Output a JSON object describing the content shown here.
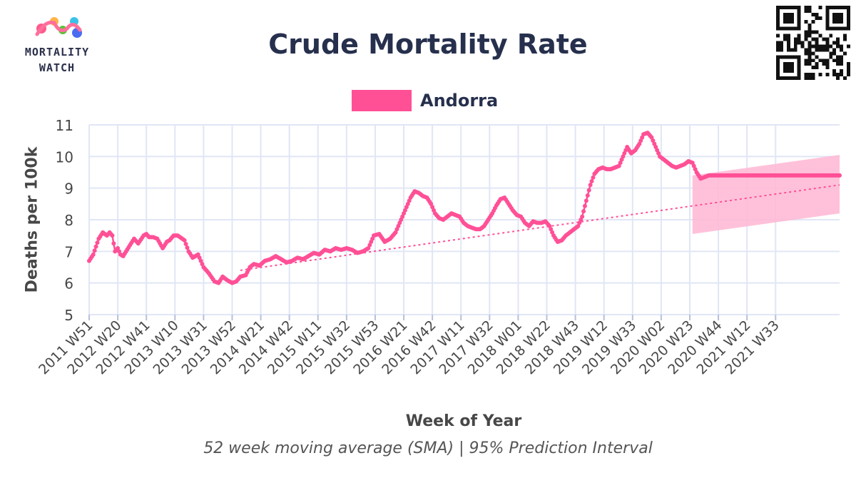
{
  "logo": {
    "line1": "MORTALITY",
    "line2": "WATCH"
  },
  "colors": {
    "series": "#ff5096",
    "band": "#ffb6d4",
    "trend": "#ff5096",
    "grid": "#e1e6f5",
    "text": "#26304d"
  },
  "chart_data": {
    "type": "line",
    "title": "Crude Mortality Rate",
    "subtitle": "52 week moving average (SMA) | 95% Prediction Interval",
    "xlabel": "Week of Year",
    "ylabel": "Deaths per 100k",
    "ylim": [
      5,
      11
    ],
    "yticks": [
      5,
      6,
      7,
      8,
      9,
      10,
      11
    ],
    "grid": true,
    "legend": {
      "position": "top-center",
      "entries": [
        "Andorra"
      ]
    },
    "x_ticks": [
      "2011 W51",
      "2012 W20",
      "2012 W41",
      "2013 W10",
      "2013 W31",
      "2013 W52",
      "2014 W21",
      "2014 W42",
      "2015 W11",
      "2015 W32",
      "2015 W53",
      "2016 W21",
      "2016 W42",
      "2017 W11",
      "2017 W32",
      "2018 W01",
      "2018 W22",
      "2018 W43",
      "2019 W12",
      "2019 W33",
      "2020 W02",
      "2020 W23",
      "2020 W44",
      "2021 W12",
      "2021 W33"
    ],
    "x_start": "2011 W51",
    "x_end": "2021 W45",
    "series": [
      {
        "name": "Andorra",
        "knots_weeks_since_start": [
          0,
          3,
          7,
          10,
          13,
          15,
          17,
          19,
          21,
          23,
          25,
          30,
          33,
          36,
          40,
          42,
          44,
          47,
          50,
          54,
          57,
          59,
          62,
          65,
          70,
          73,
          76,
          80,
          84,
          88,
          92,
          95,
          98,
          101,
          105,
          108,
          111,
          115,
          118,
          121,
          125,
          129,
          133,
          137,
          141,
          145,
          149,
          153,
          157,
          161,
          165,
          169,
          173,
          177,
          181,
          185,
          189,
          193,
          197,
          201,
          205,
          209,
          213,
          217,
          221,
          225,
          229,
          233,
          236,
          239,
          242,
          245,
          248,
          251,
          254,
          257,
          260,
          263,
          266,
          269,
          272,
          275,
          278,
          281,
          284,
          287,
          290,
          293,
          296,
          299,
          302,
          305,
          308,
          311,
          314,
          317,
          320,
          323,
          326,
          329,
          332,
          335,
          338,
          341,
          344,
          347,
          350,
          353,
          356,
          359,
          362,
          365,
          368,
          371,
          374,
          377,
          380,
          383,
          386,
          389,
          392,
          395,
          398,
          401,
          404,
          407,
          410,
          413,
          416,
          419,
          422,
          425,
          428,
          431,
          434,
          437,
          440,
          443,
          446,
          449,
          452,
          455,
          458,
          461,
          464,
          467,
          470,
          473,
          476,
          479,
          482,
          485,
          488,
          491,
          494,
          497,
          500,
          503,
          506,
          509,
          514,
          517,
          520,
          523,
          526,
          529,
          532,
          535,
          538,
          541,
          544,
          547,
          550,
          551
        ],
        "knots_values": [
          6.7,
          6.9,
          7.4,
          7.6,
          7.5,
          7.6,
          7.5,
          7.0,
          7.1,
          6.9,
          6.85,
          7.2,
          7.4,
          7.25,
          7.5,
          7.55,
          7.45,
          7.45,
          7.4,
          7.1,
          7.3,
          7.35,
          7.5,
          7.5,
          7.35,
          7.0,
          6.8,
          6.9,
          6.5,
          6.3,
          6.05,
          6.0,
          6.2,
          6.1,
          6.0,
          6.05,
          6.2,
          6.25,
          6.5,
          6.6,
          6.55,
          6.7,
          6.75,
          6.85,
          6.75,
          6.65,
          6.7,
          6.8,
          6.75,
          6.85,
          6.95,
          6.9,
          7.05,
          7.0,
          7.1,
          7.05,
          7.1,
          7.05,
          6.95,
          7.0,
          7.1,
          7.5,
          7.55,
          7.3,
          7.4,
          7.6,
          8.0,
          8.4,
          8.7,
          8.9,
          8.85,
          8.75,
          8.7,
          8.5,
          8.2,
          8.05,
          8.0,
          8.1,
          8.2,
          8.15,
          8.1,
          7.9,
          7.8,
          7.75,
          7.7,
          7.7,
          7.8,
          8.0,
          8.2,
          8.45,
          8.65,
          8.7,
          8.5,
          8.3,
          8.15,
          8.1,
          7.9,
          7.8,
          7.95,
          7.9,
          7.9,
          7.95,
          7.8,
          7.5,
          7.3,
          7.35,
          7.5,
          7.6,
          7.7,
          7.8,
          8.1,
          8.6,
          9.1,
          9.45,
          9.6,
          9.65,
          9.6,
          9.6,
          9.65,
          9.7,
          10.0,
          10.3,
          10.1,
          10.2,
          10.4,
          10.7,
          10.75,
          10.6,
          10.3,
          10.0,
          9.9,
          9.8,
          9.7,
          9.65,
          9.7,
          9.75,
          9.85,
          9.8,
          9.5,
          9.3,
          9.35,
          9.4,
          9.4,
          9.4,
          9.4,
          9.4,
          9.4,
          9.4,
          9.4,
          9.4,
          9.4,
          9.4,
          9.4,
          9.4,
          9.4,
          9.4,
          9.4,
          9.4,
          9.4,
          9.4,
          9.4,
          9.4,
          9.4,
          9.4,
          9.4,
          9.4,
          9.4,
          9.4,
          9.4,
          9.4,
          9.4,
          9.4,
          9.4,
          9.4
        ]
      }
    ],
    "trend": {
      "from_week": 111,
      "to_week": 551,
      "from_value": 6.4,
      "to_value": 9.1
    },
    "prediction_interval": {
      "from_week": 443,
      "to_week": 551,
      "upper": [
        9.4,
        10.05
      ],
      "lower": [
        7.55,
        8.2
      ]
    }
  }
}
